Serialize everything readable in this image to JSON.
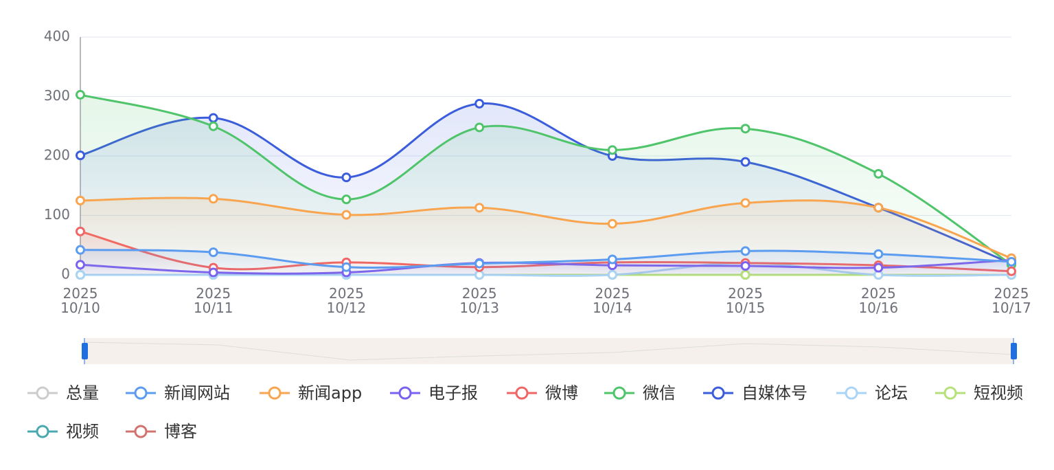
{
  "chart_data": {
    "type": "line",
    "smooth": true,
    "area": true,
    "categories": [
      "2025\n10/10",
      "2025\n10/11",
      "2025\n10/12",
      "2025\n10/13",
      "2025\n10/14",
      "2025\n10/15",
      "2025\n10/16",
      "2025\n10/17"
    ],
    "ylim": [
      0,
      400
    ],
    "yticks": [
      0,
      100,
      200,
      300,
      400
    ],
    "grid": true,
    "series": [
      {
        "name": "总量",
        "color": "#cccccc",
        "visible": false,
        "values": [
          null,
          null,
          null,
          null,
          null,
          null,
          null,
          null
        ]
      },
      {
        "name": "新闻网站",
        "color": "#5b9cf0",
        "values": [
          42,
          38,
          13,
          19,
          26,
          40,
          35,
          22
        ]
      },
      {
        "name": "新闻app",
        "color": "#f9a54f",
        "values": [
          125,
          128,
          101,
          113,
          86,
          121,
          113,
          28
        ]
      },
      {
        "name": "电子报",
        "color": "#7b61f0",
        "values": [
          17,
          4,
          4,
          20,
          16,
          15,
          12,
          25
        ]
      },
      {
        "name": "微博",
        "color": "#f06565",
        "values": [
          73,
          12,
          21,
          13,
          21,
          20,
          16,
          6
        ]
      },
      {
        "name": "微信",
        "color": "#4fc46a",
        "values": [
          303,
          250,
          127,
          248,
          210,
          246,
          170,
          17
        ]
      },
      {
        "name": "自媒体号",
        "color": "#3b5ddc",
        "values": [
          201,
          264,
          164,
          288,
          200,
          190,
          113,
          19
        ]
      },
      {
        "name": "论坛",
        "color": "#a9d4f5",
        "values": [
          0,
          0,
          0,
          0,
          0,
          20,
          0,
          0
        ]
      },
      {
        "name": "短视频",
        "color": "#b5e07a",
        "values": [
          0,
          0,
          0,
          0,
          0,
          0,
          0,
          0
        ]
      },
      {
        "name": "视频",
        "color": "#4aa8b0",
        "values": [
          0,
          0,
          0,
          0,
          0,
          0,
          0,
          0
        ]
      },
      {
        "name": "博客",
        "color": "#d0736d",
        "values": [
          0,
          0,
          0,
          0,
          0,
          0,
          0,
          0
        ]
      }
    ]
  }
}
